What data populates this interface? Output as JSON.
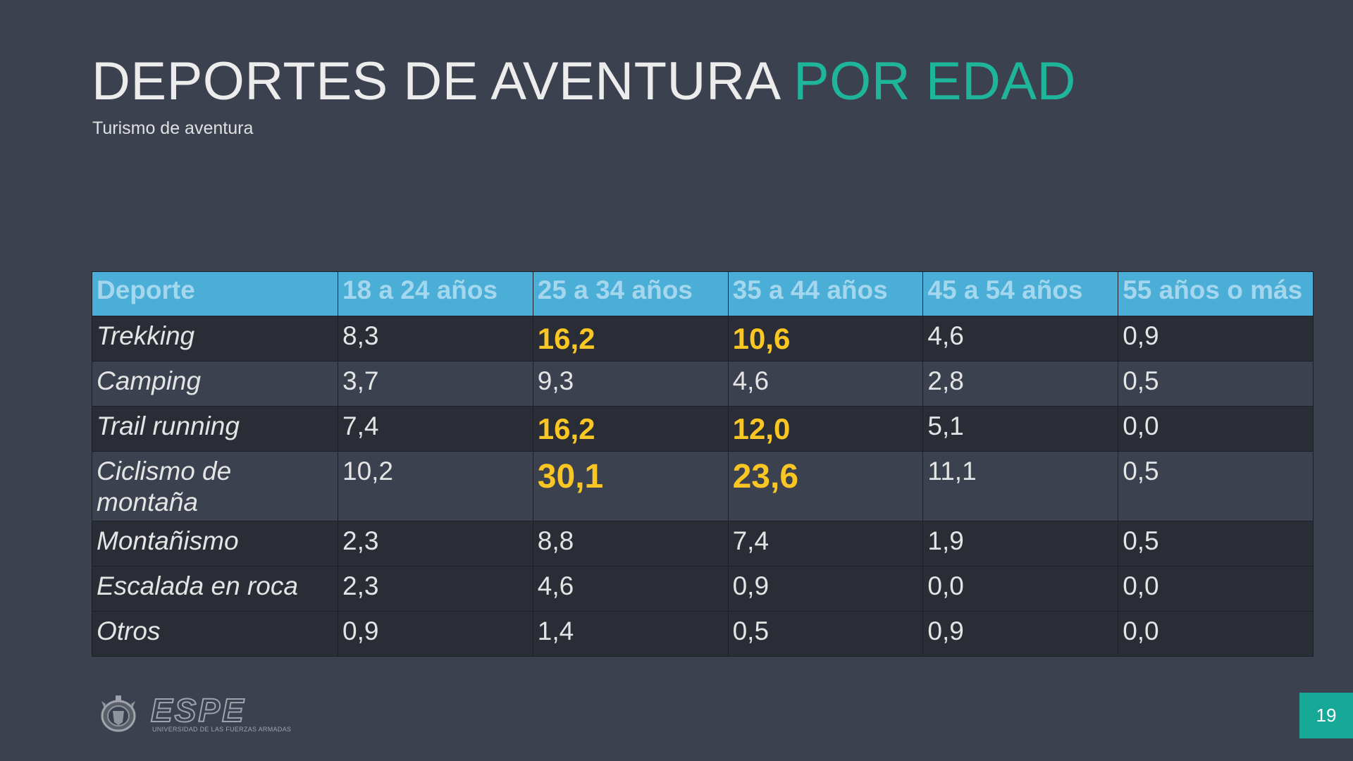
{
  "slide": {
    "title_main": "DEPORTES DE AVENTURA ",
    "title_accent": "POR EDAD",
    "subtitle": "Turismo de aventura",
    "page_number": "19"
  },
  "table": {
    "headers": [
      "Deporte",
      "18 a 24 años",
      "25 a 34 años",
      "35 a 44 años",
      "45 a 54 años",
      "55 años o más"
    ],
    "rows": [
      {
        "sport": "Trekking",
        "values": [
          "8,3",
          "16,2",
          "10,6",
          "4,6",
          "0,9"
        ]
      },
      {
        "sport": "Camping",
        "values": [
          "3,7",
          "9,3",
          "4,6",
          "2,8",
          "0,5"
        ]
      },
      {
        "sport": "Trail running",
        "values": [
          "7,4",
          "16,2",
          "12,0",
          "5,1",
          "0,0"
        ]
      },
      {
        "sport": "Ciclismo de montaña",
        "values": [
          "10,2",
          "30,1",
          "23,6",
          "11,1",
          "0,5"
        ]
      },
      {
        "sport": "Montañismo",
        "values": [
          "2,3",
          "8,8",
          "7,4",
          "1,9",
          "0,5"
        ]
      },
      {
        "sport": "Escalada en roca",
        "values": [
          "2,3",
          "4,6",
          "0,9",
          "0,0",
          "0,0"
        ]
      },
      {
        "sport": "Otros",
        "values": [
          "0,9",
          "1,4",
          "0,5",
          "0,9",
          "0,0"
        ]
      }
    ]
  },
  "colors": {
    "background": "#3c4150",
    "accent": "#1fb59b",
    "header_fill": "#4aaed6",
    "highlight": "#f9c623",
    "page_badge": "#18a897"
  },
  "logo": {
    "icon": "espe-emblem-icon",
    "wordmark": "ESPE",
    "tagline": "UNIVERSIDAD DE LAS FUERZAS ARMADAS"
  }
}
